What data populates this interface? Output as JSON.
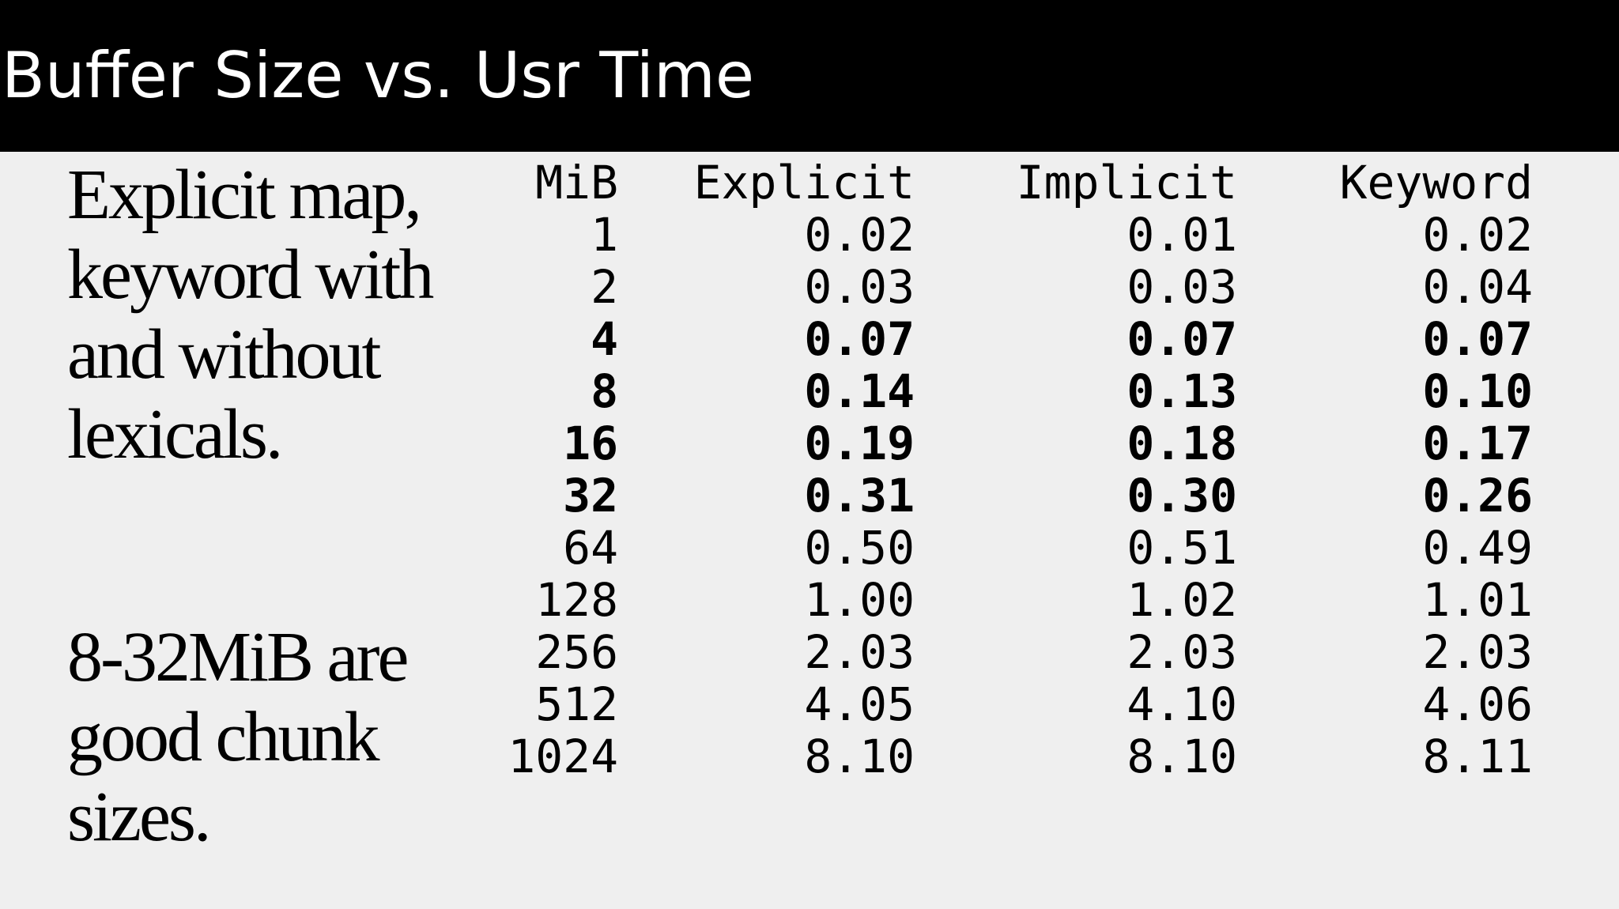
{
  "slide": {
    "title": "Buffer Size vs. Usr Time",
    "notes": [
      "Explicit map, keyword with and without lexicals.",
      "8-32MiB are good chunk sizes."
    ]
  },
  "table": {
    "headers": [
      "MiB",
      "Explicit",
      "Implicit",
      "Keyword"
    ],
    "rows": [
      {
        "cells": [
          "1",
          "0.02",
          "0.01",
          "0.02"
        ],
        "bold": false
      },
      {
        "cells": [
          "2",
          "0.03",
          "0.03",
          "0.04"
        ],
        "bold": false
      },
      {
        "cells": [
          "4",
          "0.07",
          "0.07",
          "0.07"
        ],
        "bold": true
      },
      {
        "cells": [
          "8",
          "0.14",
          "0.13",
          "0.10"
        ],
        "bold": true
      },
      {
        "cells": [
          "16",
          "0.19",
          "0.18",
          "0.17"
        ],
        "bold": true
      },
      {
        "cells": [
          "32",
          "0.31",
          "0.30",
          "0.26"
        ],
        "bold": true
      },
      {
        "cells": [
          "64",
          "0.50",
          "0.51",
          "0.49"
        ],
        "bold": false
      },
      {
        "cells": [
          "128",
          "1.00",
          "1.02",
          "1.01"
        ],
        "bold": false
      },
      {
        "cells": [
          "256",
          "2.03",
          "2.03",
          "2.03"
        ],
        "bold": false
      },
      {
        "cells": [
          "512",
          "4.05",
          "4.10",
          "4.06"
        ],
        "bold": false
      },
      {
        "cells": [
          "1024",
          "8.10",
          "8.10",
          "8.11"
        ],
        "bold": false
      }
    ]
  },
  "colors": {
    "background": "#efefef",
    "title_bar": "#000000",
    "title_text": "#ffffff",
    "body_text": "#000000"
  }
}
